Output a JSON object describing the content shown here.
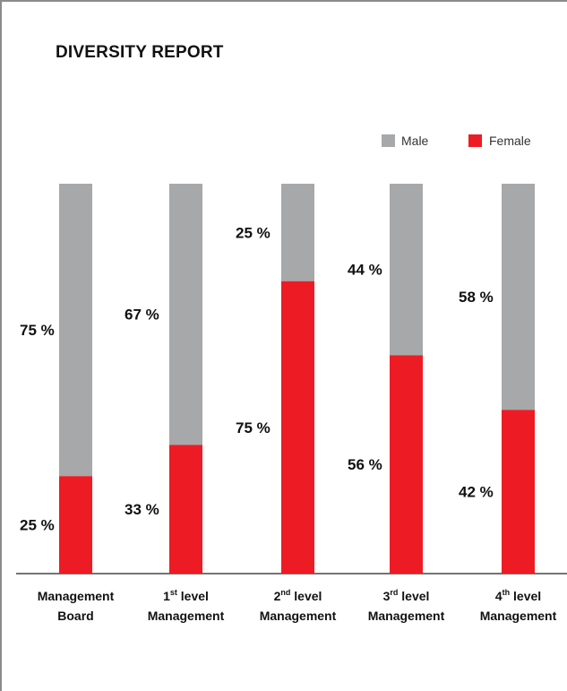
{
  "report": {
    "title": "DIVERSITY REPORT"
  },
  "colors": {
    "male": "#a7a8aa",
    "female": "#ed1c24",
    "axis": "#222222"
  },
  "chart_data": {
    "type": "bar",
    "stacked": true,
    "percent": true,
    "title": "DIVERSITY REPORT",
    "legend": {
      "position": "top-right",
      "entries": [
        "Male",
        "Female"
      ]
    },
    "categories": [
      {
        "line1": [
          "Management"
        ],
        "line2": [
          "Board"
        ]
      },
      {
        "line1": [
          "1",
          "st",
          " level"
        ],
        "line2": [
          "Management"
        ]
      },
      {
        "line1": [
          "2",
          "nd",
          " level"
        ],
        "line2": [
          "Management"
        ]
      },
      {
        "line1": [
          "3",
          "rd",
          " level"
        ],
        "line2": [
          "Management"
        ]
      },
      {
        "line1": [
          "4",
          "th",
          " level"
        ],
        "line2": [
          "Management"
        ]
      }
    ],
    "series": [
      {
        "name": "Male",
        "values": [
          75,
          67,
          25,
          44,
          58
        ],
        "labels": [
          "75 %",
          "67 %",
          "25 %",
          "44 %",
          "58 %"
        ]
      },
      {
        "name": "Female",
        "values": [
          25,
          33,
          75,
          56,
          42
        ],
        "labels": [
          "25 %",
          "33 %",
          "75 %",
          "56 %",
          "42 %"
        ]
      }
    ],
    "ylim": [
      0,
      100
    ],
    "grid": false
  }
}
